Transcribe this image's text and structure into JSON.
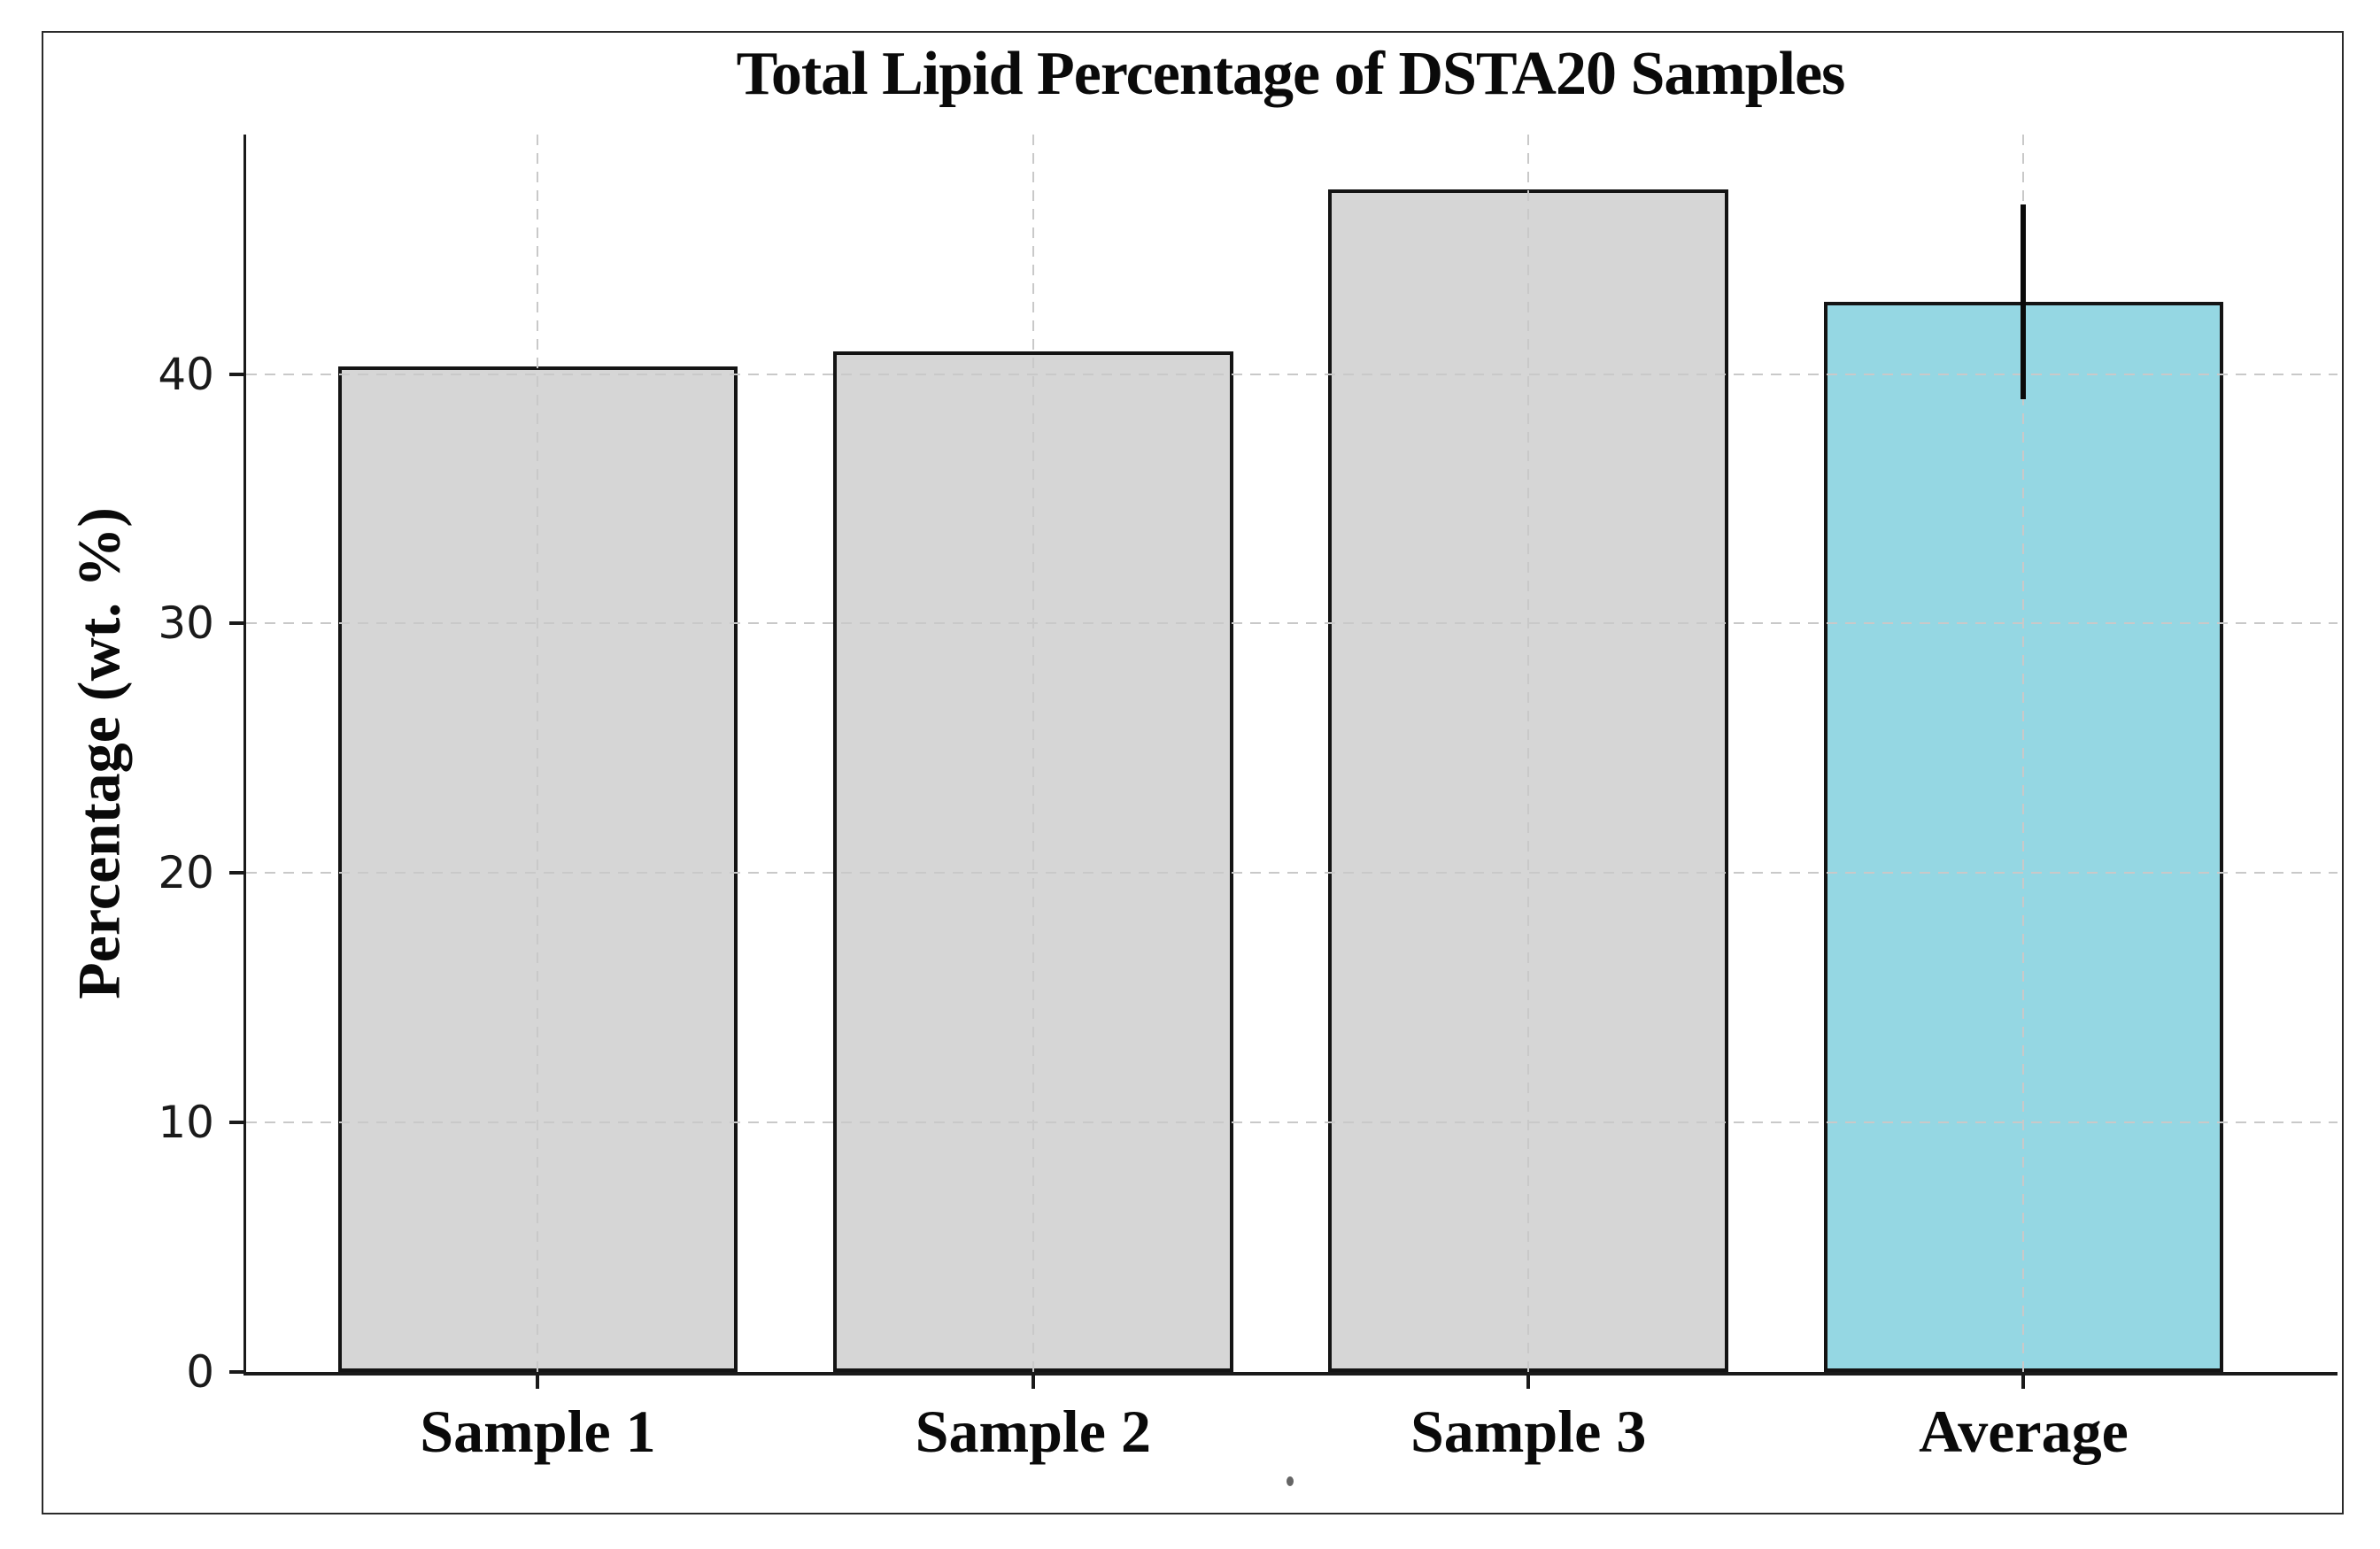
{
  "figure": {
    "background": "#ffffff",
    "frame_color": "#2a2a2a"
  },
  "chart_data": {
    "type": "bar",
    "title": "Total Lipid Percentage of DSTA20 Samples",
    "xlabel": "",
    "ylabel": "Percentage (wt. %)",
    "categories": [
      "Sample 1",
      "Sample 2",
      "Sample 3",
      "Average"
    ],
    "values": [
      40.3,
      40.9,
      47.4,
      42.9
    ],
    "error_bars": [
      null,
      null,
      null,
      3.9
    ],
    "bar_colors": [
      "#d6d6d6",
      "#d6d6d6",
      "#d6d6d6",
      "#95d7e3"
    ],
    "bar_edge_color": "#141414",
    "error_bar_color": "#0a0a0a",
    "yticks": [
      0,
      10,
      20,
      30,
      40
    ],
    "ytick_labels": [
      "0",
      "10",
      "20",
      "30",
      "40"
    ],
    "ylim": [
      0,
      49.6
    ],
    "grid": true,
    "grid_style": "dashed",
    "grid_color": "#c9c9c9",
    "legend": "none"
  }
}
